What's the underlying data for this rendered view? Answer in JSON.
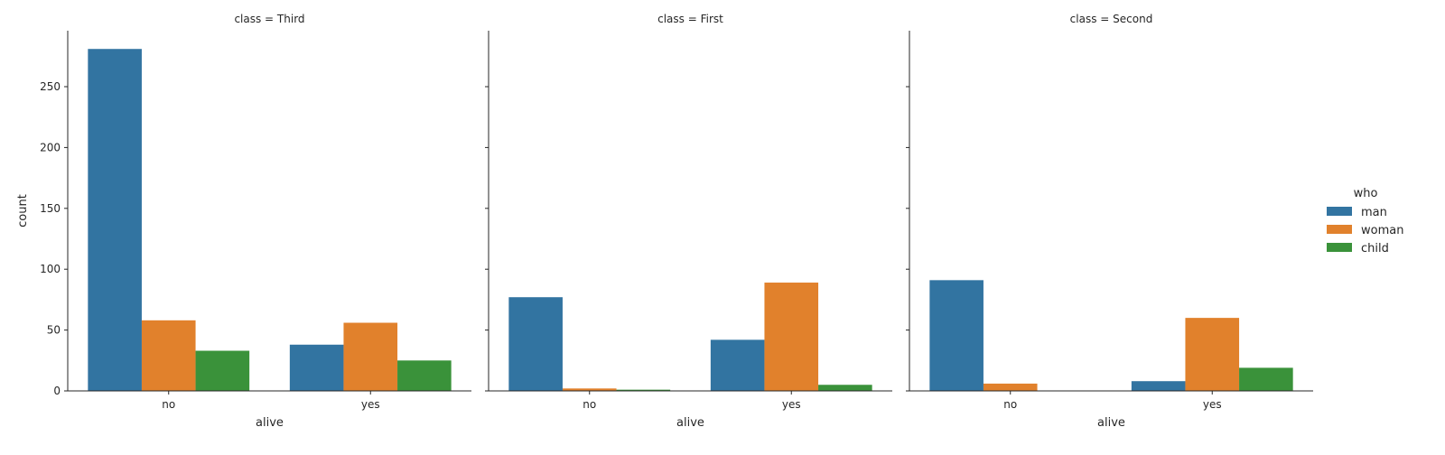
{
  "chart_data": {
    "type": "bar",
    "x_label": "alive",
    "y_label": "count",
    "categories": [
      "no",
      "yes"
    ],
    "y_ticks": [
      0,
      50,
      100,
      150,
      200,
      250
    ],
    "ylim": [
      0,
      296
    ],
    "hue_title": "who",
    "series_names": [
      "man",
      "woman",
      "child"
    ],
    "colors": {
      "man": "#3274a1",
      "woman": "#e1812c",
      "child": "#3a923a"
    },
    "legend_position": "right",
    "facets": [
      {
        "title": "class = Third",
        "values": {
          "man": [
            281,
            38
          ],
          "woman": [
            58,
            56
          ],
          "child": [
            33,
            25
          ]
        }
      },
      {
        "title": "class = First",
        "values": {
          "man": [
            77,
            42
          ],
          "woman": [
            2,
            89
          ],
          "child": [
            1,
            5
          ]
        }
      },
      {
        "title": "class = Second",
        "values": {
          "man": [
            91,
            8
          ],
          "woman": [
            6,
            60
          ],
          "child": [
            0,
            19
          ]
        }
      }
    ]
  }
}
